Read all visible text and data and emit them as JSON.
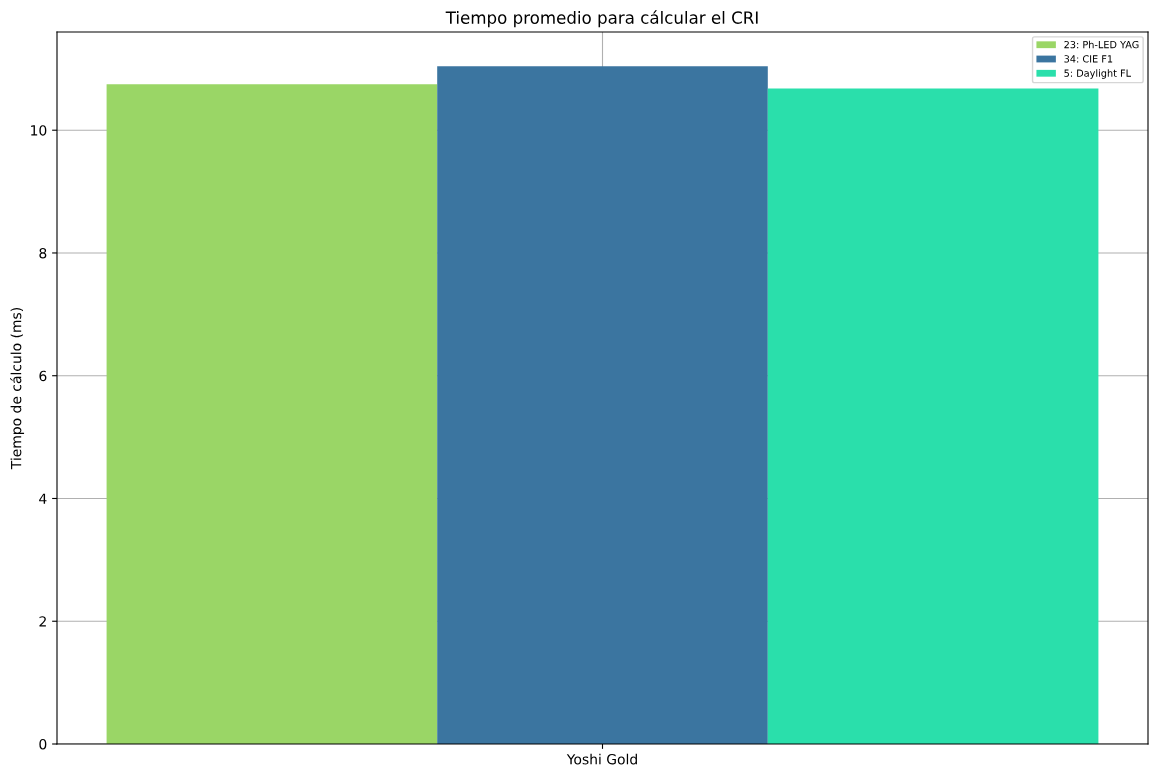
{
  "chart_data": {
    "type": "bar",
    "title": "Tiempo promedio para cálcular el CRI",
    "ylabel": "Tiempo de cálculo (ms)",
    "categories": [
      "Yoshi Gold"
    ],
    "series": [
      {
        "name": "23: Ph-LED YAG",
        "color": "#9ad666",
        "values": [
          10.75
        ]
      },
      {
        "name": "34: CIE F1",
        "color": "#3b75a0",
        "values": [
          11.04
        ]
      },
      {
        "name": "5: Daylight FL",
        "color": "#2adfab",
        "values": [
          10.68
        ]
      }
    ],
    "ylim": [
      0,
      11.6
    ],
    "yticks": [
      0,
      2,
      4,
      6,
      8,
      10
    ],
    "grid": true,
    "legend": "upper right"
  }
}
